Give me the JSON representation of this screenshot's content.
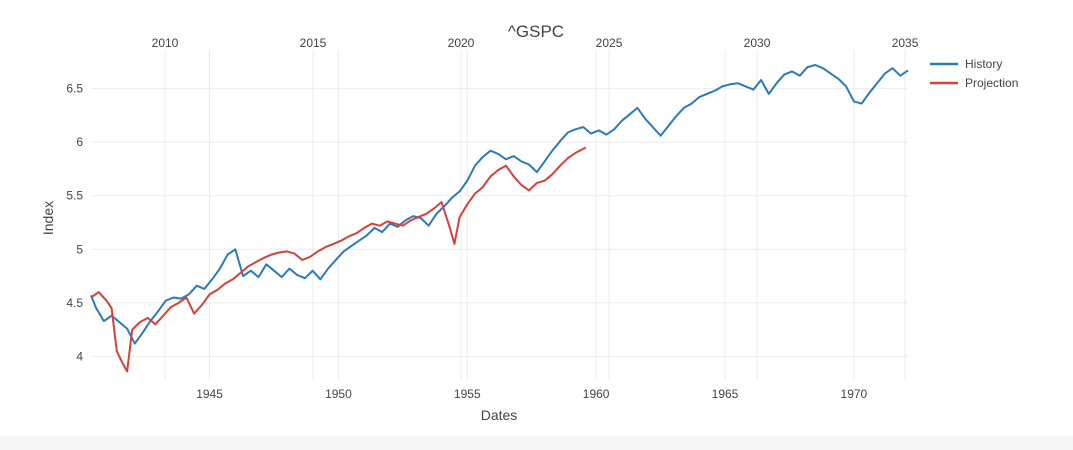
{
  "chart_data": {
    "type": "line",
    "title": "^GSPC",
    "xlabel": "Dates",
    "ylabel": "Index",
    "ylim": [
      3.78,
      6.86
    ],
    "yticks": [
      4,
      4.5,
      5,
      5.5,
      6,
      6.5
    ],
    "ytick_labels": [
      "4",
      "4.5",
      "5",
      "5.5",
      "6",
      "6.5"
    ],
    "x_bottom": {
      "range": [
        1940.4,
        1972.1
      ],
      "ticks": [
        1945,
        1950,
        1955,
        1960,
        1965,
        1970
      ]
    },
    "x_top": {
      "range": [
        2007.5,
        2035.1
      ],
      "ticks": [
        2010,
        2015,
        2020,
        2025,
        2030,
        2035
      ]
    },
    "grid": true,
    "legend_position": "top-right",
    "series": [
      {
        "name": "History",
        "axis": "bottom",
        "color": "#2c7bb6",
        "x": [
          1940.4,
          1940.6,
          1940.9,
          1941.2,
          1941.5,
          1941.8,
          1942.1,
          1942.4,
          1942.7,
          1943.0,
          1943.3,
          1943.6,
          1943.9,
          1944.2,
          1944.5,
          1944.8,
          1945.1,
          1945.4,
          1945.7,
          1946.0,
          1946.3,
          1946.6,
          1946.9,
          1947.2,
          1947.5,
          1947.8,
          1948.1,
          1948.4,
          1948.7,
          1949.0,
          1949.3,
          1949.6,
          1949.9,
          1950.2,
          1950.5,
          1950.8,
          1951.1,
          1951.4,
          1951.7,
          1952.0,
          1952.3,
          1952.6,
          1952.9,
          1953.2,
          1953.5,
          1953.8,
          1954.1,
          1954.4,
          1954.7,
          1955.0,
          1955.3,
          1955.6,
          1955.9,
          1956.2,
          1956.5,
          1956.8,
          1957.1,
          1957.4,
          1957.7,
          1958.0,
          1958.3,
          1958.6,
          1958.9,
          1959.2,
          1959.5,
          1959.8,
          1960.1,
          1960.4,
          1960.7,
          1961.0,
          1961.3,
          1961.6,
          1961.9,
          1962.2,
          1962.5,
          1962.8,
          1963.1,
          1963.4,
          1963.7,
          1964.0,
          1964.3,
          1964.6,
          1964.9,
          1965.2,
          1965.5,
          1965.8,
          1966.1,
          1966.4,
          1966.7,
          1967.0,
          1967.3,
          1967.6,
          1967.9,
          1968.2,
          1968.5,
          1968.8,
          1969.1,
          1969.4,
          1969.7,
          1970.0,
          1970.3,
          1970.6,
          1970.9,
          1971.2,
          1971.5,
          1971.8,
          1972.1
        ],
        "y": [
          4.57,
          4.45,
          4.33,
          4.38,
          4.32,
          4.26,
          4.12,
          4.22,
          4.33,
          4.42,
          4.52,
          4.55,
          4.54,
          4.58,
          4.66,
          4.63,
          4.72,
          4.82,
          4.95,
          5.0,
          4.75,
          4.8,
          4.74,
          4.86,
          4.8,
          4.74,
          4.82,
          4.76,
          4.73,
          4.8,
          4.72,
          4.82,
          4.9,
          4.98,
          5.03,
          5.08,
          5.13,
          5.2,
          5.16,
          5.24,
          5.21,
          5.27,
          5.31,
          5.29,
          5.22,
          5.33,
          5.4,
          5.48,
          5.54,
          5.64,
          5.78,
          5.86,
          5.92,
          5.89,
          5.84,
          5.87,
          5.82,
          5.79,
          5.72,
          5.82,
          5.92,
          6.01,
          6.09,
          6.12,
          6.14,
          6.08,
          6.11,
          6.07,
          6.12,
          6.2,
          6.26,
          6.32,
          6.22,
          6.14,
          6.06,
          6.15,
          6.24,
          6.32,
          6.36,
          6.42,
          6.45,
          6.48,
          6.52,
          6.54,
          6.55,
          6.52,
          6.49,
          6.58,
          6.45,
          6.55,
          6.63,
          6.66,
          6.62,
          6.7,
          6.72,
          6.69,
          6.64,
          6.59,
          6.52,
          6.38,
          6.36,
          6.46,
          6.55,
          6.64,
          6.69,
          6.62,
          6.67
        ]
      },
      {
        "name": "Projection",
        "axis": "bottom",
        "color": "#d7403b",
        "x": [
          1940.4,
          1940.7,
          1941.0,
          1941.2,
          1941.4,
          1941.6,
          1941.8,
          1942.0,
          1942.3,
          1942.6,
          1942.9,
          1943.2,
          1943.5,
          1943.8,
          1944.1,
          1944.4,
          1944.7,
          1945.0,
          1945.3,
          1945.6,
          1945.9,
          1946.2,
          1946.5,
          1946.8,
          1947.1,
          1947.4,
          1947.7,
          1948.0,
          1948.3,
          1948.6,
          1948.9,
          1949.2,
          1949.5,
          1949.8,
          1950.1,
          1950.4,
          1950.7,
          1951.0,
          1951.3,
          1951.6,
          1951.9,
          1952.2,
          1952.5,
          1952.8,
          1953.1,
          1953.4,
          1953.7,
          1954.0,
          1954.3,
          1954.5,
          1954.7,
          1955.0,
          1955.3,
          1955.6,
          1955.9,
          1956.2,
          1956.5,
          1956.8,
          1957.1,
          1957.4,
          1957.7,
          1958.0,
          1958.3,
          1958.6,
          1958.9,
          1959.2,
          1959.6
        ],
        "y": [
          4.55,
          4.6,
          4.52,
          4.45,
          4.05,
          3.95,
          3.86,
          4.25,
          4.32,
          4.36,
          4.3,
          4.38,
          4.46,
          4.5,
          4.55,
          4.4,
          4.48,
          4.58,
          4.62,
          4.68,
          4.72,
          4.78,
          4.84,
          4.88,
          4.92,
          4.95,
          4.97,
          4.98,
          4.96,
          4.9,
          4.93,
          4.98,
          5.02,
          5.05,
          5.08,
          5.12,
          5.15,
          5.2,
          5.24,
          5.22,
          5.26,
          5.24,
          5.22,
          5.27,
          5.3,
          5.33,
          5.38,
          5.44,
          5.22,
          5.05,
          5.3,
          5.42,
          5.52,
          5.58,
          5.68,
          5.74,
          5.78,
          5.68,
          5.6,
          5.55,
          5.62,
          5.64,
          5.7,
          5.78,
          5.85,
          5.9,
          5.95
        ]
      }
    ]
  }
}
